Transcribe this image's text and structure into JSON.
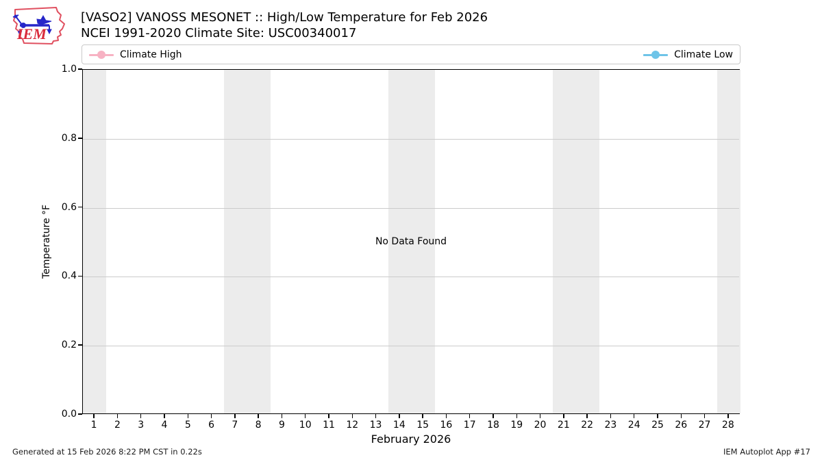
{
  "header": {
    "title_line1": "[VASO2] VANOSS MESONET :: High/Low Temperature for Feb 2026",
    "title_line2": "NCEI 1991-2020 Climate Site: USC00340017",
    "logo_text": "IEM"
  },
  "legend": {
    "items": [
      {
        "label": "Climate High",
        "color": "#f7b2c3"
      },
      {
        "label": "Climate Low",
        "color": "#6ec4e8"
      }
    ]
  },
  "chart_data": {
    "type": "line",
    "title": "[VASO2] VANOSS MESONET :: High/Low Temperature for Feb 2026",
    "subtitle": "NCEI 1991-2020 Climate Site: USC00340017",
    "xlabel": "February 2026",
    "ylabel": "Temperature °F",
    "xlim": [
      0.5,
      28.5
    ],
    "ylim": [
      0.0,
      1.0
    ],
    "x_ticks": [
      1,
      2,
      3,
      4,
      5,
      6,
      7,
      8,
      9,
      10,
      11,
      12,
      13,
      14,
      15,
      16,
      17,
      18,
      19,
      20,
      21,
      22,
      23,
      24,
      25,
      26,
      27,
      28
    ],
    "y_ticks": [
      0.0,
      0.2,
      0.4,
      0.6,
      0.8,
      1.0
    ],
    "grid": true,
    "legend_position": "top",
    "series": [
      {
        "name": "Climate High",
        "color": "#f7b2c3",
        "values": []
      },
      {
        "name": "Climate Low",
        "color": "#6ec4e8",
        "values": []
      }
    ],
    "no_data_message": "No Data Found",
    "weekend_bands_days": [
      [
        0.5,
        1.5
      ],
      [
        6.5,
        8.5
      ],
      [
        13.5,
        15.5
      ],
      [
        20.5,
        22.5
      ],
      [
        27.5,
        28.5
      ]
    ],
    "band_color": "#ececec"
  },
  "footer": {
    "left": "Generated at 15 Feb 2026 8:22 PM CST in 0.22s",
    "right": "IEM Autoplot App #17"
  }
}
